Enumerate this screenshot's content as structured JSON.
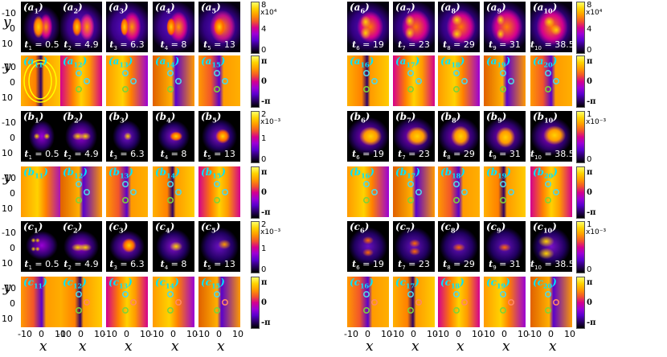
{
  "figure": {
    "y_axis_label": "y",
    "x_axis_label": "x",
    "y_tick_labels": [
      "-10",
      "0",
      "10"
    ],
    "x_tick_labels": [
      "-10",
      "0",
      "10"
    ],
    "time_labels": [
      "t1 = 0.5",
      "t2 = 4.9",
      "t3 = 6.3",
      "t4 = 8",
      "t5 = 13",
      "t6 = 19",
      "t7 = 23",
      "t8 = 29",
      "t9 = 31",
      "t10 = 38.5"
    ],
    "colorbar_phase_labels": [
      "π",
      "0",
      "-π"
    ]
  },
  "rows": [
    {
      "kind": "density",
      "labels": [
        "a1",
        "a2",
        "a3",
        "a4",
        "a5",
        "a6",
        "a7",
        "a8",
        "a9",
        "a10"
      ],
      "colorbars": [
        {
          "ticks": [
            "8",
            "4",
            "0"
          ],
          "multiplier": "x10⁴"
        },
        {
          "ticks": [
            "8",
            "4",
            "0"
          ],
          "multiplier": "x10⁴"
        }
      ]
    },
    {
      "kind": "phase",
      "labels": [
        "a11",
        "a12",
        "a13",
        "a14",
        "a15",
        "a16",
        "a17",
        "a18",
        "a19",
        "a20"
      ]
    },
    {
      "kind": "density",
      "labels": [
        "b1",
        "b2",
        "b3",
        "b4",
        "b5",
        "b6",
        "b7",
        "b8",
        "b9",
        "b10"
      ],
      "colorbars": [
        {
          "ticks": [
            "2",
            "1",
            "0"
          ],
          "multiplier": "x10⁻³"
        },
        {
          "ticks": [
            "1",
            "0"
          ],
          "multiplier": "x10⁻³"
        }
      ]
    },
    {
      "kind": "phase",
      "labels": [
        "b11",
        "b12",
        "b13",
        "b14",
        "b15",
        "b16",
        "b17",
        "b18",
        "b19",
        "b20"
      ]
    },
    {
      "kind": "density",
      "labels": [
        "c1",
        "c2",
        "c3",
        "c4",
        "c5",
        "c6",
        "c7",
        "c8",
        "c9",
        "c10"
      ],
      "colorbars": [
        {
          "ticks": [
            "2",
            "1",
            "0"
          ],
          "multiplier": "x10⁻³"
        },
        {
          "ticks": [
            "1",
            "0"
          ],
          "multiplier": "x10⁻³"
        }
      ]
    },
    {
      "kind": "phase",
      "labels": [
        "c11",
        "c12",
        "c13",
        "c14",
        "c15",
        "c16",
        "c17",
        "c18",
        "c19",
        "c20"
      ]
    }
  ],
  "colors": {
    "background": "#ffffff",
    "panel_base": "#000000",
    "phase_label": "#00e5ff",
    "vortex_cyan": "#4fd6e6",
    "vortex_green": "#7cd23a",
    "vortex_red": "#ff8866",
    "colormap": [
      "#000000",
      "#2a0066",
      "#5a00cc",
      "#9b00d6",
      "#d4008e",
      "#f2552a",
      "#ff9a00",
      "#ffd200",
      "#ffff66"
    ]
  }
}
